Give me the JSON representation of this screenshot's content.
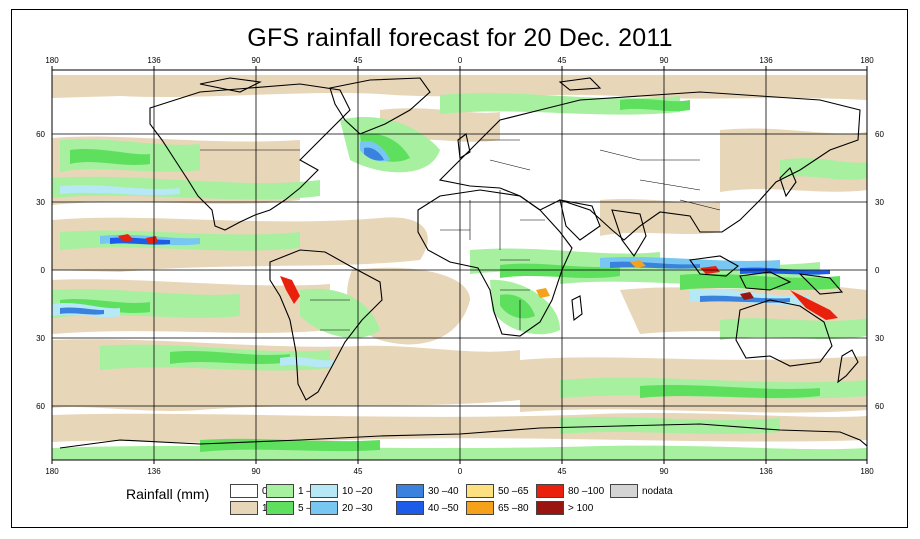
{
  "title": "GFS rainfall forecast for 20 Dec. 2011",
  "longitude_labels": [
    "180",
    "136",
    "90",
    "45",
    "0",
    "45",
    "90",
    "136",
    "180"
  ],
  "latitude_labels": [
    "60",
    "30",
    "0",
    "30",
    "60"
  ],
  "legend": {
    "title": "Rainfall (mm)",
    "nodata_label": "nodata",
    "items": [
      {
        "label": "0",
        "color": "#ffffff"
      },
      {
        "label": "1",
        "color": "#e8d6b8"
      },
      {
        "label": "1 – 5",
        "color": "#a6f0a0"
      },
      {
        "label": "5 – 10",
        "color": "#5ee05e"
      },
      {
        "label": "10 –20",
        "color": "#b6e8f6"
      },
      {
        "label": "20 –30",
        "color": "#78c6f2"
      },
      {
        "label": "30 –40",
        "color": "#3a82de"
      },
      {
        "label": "40 –50",
        "color": "#1c5ce8"
      },
      {
        "label": "50 –65",
        "color": "#fde080"
      },
      {
        "label": "65 –80",
        "color": "#f5a21a"
      },
      {
        "label": "80 –100",
        "color": "#e8200c"
      },
      {
        "label": "> 100",
        "color": "#9a1510"
      },
      {
        "label": "nodata",
        "color": "#d4d4d4"
      }
    ]
  },
  "colors": {
    "frame": "#000000",
    "grid": "#000000",
    "coast": "#000000"
  }
}
